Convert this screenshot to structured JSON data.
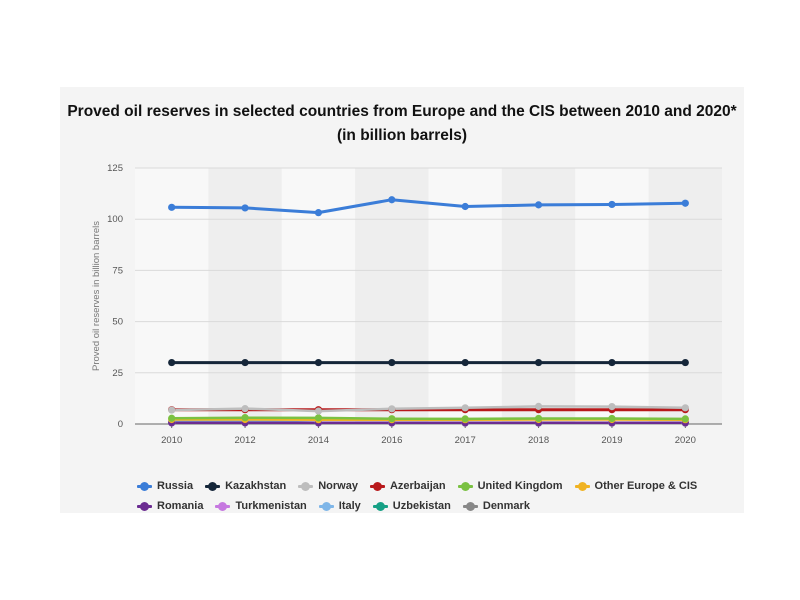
{
  "chart_data": {
    "type": "line",
    "title": "Proved oil reserves in selected countries from Europe and the CIS between 2010 and 2020* (in billion barrels)",
    "ylabel": "Proved oil reserves in billion barrels",
    "xlabel": "",
    "categories": [
      "2010",
      "2012",
      "2014",
      "2016",
      "2017",
      "2018",
      "2019",
      "2020"
    ],
    "yticks": [
      0,
      25,
      50,
      75,
      100,
      125
    ],
    "ylim": [
      0,
      125
    ],
    "grid": true,
    "legend_position": "bottom",
    "series": [
      {
        "name": "Russia",
        "color": "#3b7dd8",
        "values": [
          105.8,
          105.5,
          103.2,
          109.5,
          106.2,
          107.0,
          107.2,
          107.8
        ]
      },
      {
        "name": "Kazakhstan",
        "color": "#152639",
        "values": [
          30.0,
          30.0,
          30.0,
          30.0,
          30.0,
          30.0,
          30.0,
          30.0
        ]
      },
      {
        "name": "Norway",
        "color": "#bdbdbd",
        "values": [
          6.8,
          7.5,
          6.3,
          7.4,
          7.9,
          8.6,
          8.5,
          7.9
        ]
      },
      {
        "name": "Azerbaijan",
        "color": "#b8191b",
        "values": [
          7.0,
          7.0,
          7.0,
          7.0,
          7.0,
          7.0,
          7.0,
          7.0
        ]
      },
      {
        "name": "United Kingdom",
        "color": "#7ac142",
        "values": [
          2.8,
          3.1,
          3.0,
          2.6,
          2.5,
          2.7,
          2.7,
          2.5
        ]
      },
      {
        "name": "Other Europe & CIS",
        "color": "#f0b323",
        "values": [
          2.2,
          2.2,
          2.1,
          2.1,
          2.1,
          2.2,
          2.2,
          2.1
        ]
      },
      {
        "name": "Romania",
        "color": "#6b2c91",
        "values": [
          0.6,
          0.6,
          0.6,
          0.6,
          0.6,
          0.6,
          0.6,
          0.6
        ]
      },
      {
        "name": "Turkmenistan",
        "color": "#c678e0",
        "values": [
          0.6,
          0.6,
          0.6,
          0.6,
          0.6,
          0.6,
          0.6,
          0.6
        ]
      },
      {
        "name": "Italy",
        "color": "#7fb6e8",
        "values": [
          1.4,
          1.4,
          0.6,
          0.6,
          0.6,
          0.6,
          0.6,
          0.6
        ]
      },
      {
        "name": "Uzbekistan",
        "color": "#16a085",
        "values": [
          0.6,
          0.6,
          0.6,
          0.6,
          0.6,
          0.6,
          0.6,
          0.6
        ]
      },
      {
        "name": "Denmark",
        "color": "#888888",
        "values": [
          0.9,
          0.7,
          0.6,
          0.5,
          0.4,
          0.4,
          0.4,
          0.4
        ]
      }
    ],
    "legend_rows": [
      [
        "Russia",
        "Kazakhstan",
        "Norway",
        "Azerbaijan",
        "United Kingdom",
        "Other Europe & CIS"
      ],
      [
        "Romania",
        "Turkmenistan",
        "Italy",
        "Uzbekistan",
        "Denmark"
      ]
    ]
  }
}
